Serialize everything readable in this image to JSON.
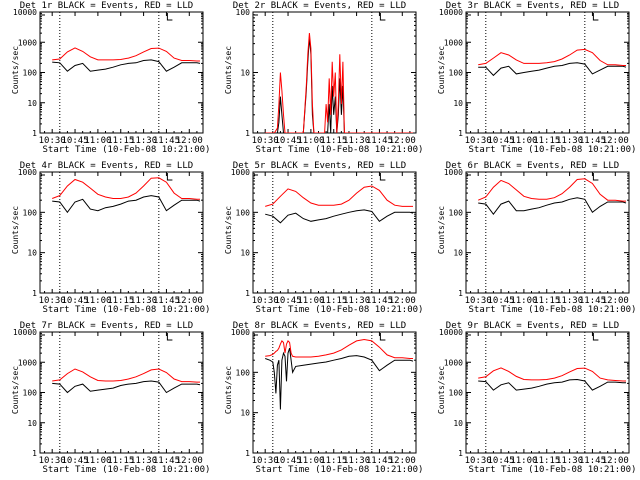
{
  "chart_data": [
    {
      "type": "line",
      "title": "Det 1r BLACK = Events, RED = LLD",
      "xlabel": "Start Time (10-Feb-08 10:21:00)",
      "ylabel": "Counts/sec",
      "x_ticks": [
        "10:30",
        "10:45",
        "11:00",
        "11:15",
        "11:30",
        "11:45",
        "12:00"
      ],
      "y_ticks": [
        "1",
        "10",
        "100",
        "1000",
        "10000"
      ],
      "yscale": "log",
      "ylim": [
        1,
        10000
      ],
      "x": [
        0,
        5,
        10,
        15,
        20,
        25,
        30,
        35,
        40,
        45,
        50,
        55,
        60,
        65,
        70,
        75,
        80,
        85,
        90,
        95,
        97
      ],
      "series": [
        {
          "color": "#ff0000",
          "values": [
            260,
            280,
            480,
            650,
            500,
            330,
            260,
            260,
            260,
            270,
            300,
            360,
            480,
            620,
            640,
            500,
            300,
            250,
            250,
            240,
            240
          ]
        },
        {
          "color": "#000000",
          "values": [
            220,
            210,
            110,
            170,
            200,
            110,
            120,
            130,
            150,
            180,
            200,
            210,
            250,
            260,
            230,
            110,
            150,
            210,
            210,
            210,
            200
          ]
        }
      ]
    },
    {
      "type": "line",
      "title": "Det 2r BLACK = Events, RED = LLD",
      "xlabel": "Start Time (10-Feb-08 10:21:00)",
      "ylabel": "Counts/sec",
      "x_ticks": [
        "10:30",
        "10:45",
        "11:00",
        "11:15",
        "11:30",
        "11:45",
        "12:00"
      ],
      "y_ticks": [
        "1",
        "10",
        "100"
      ],
      "yscale": "log",
      "ylim": [
        1,
        100
      ],
      "x": [
        0,
        4,
        6,
        8,
        9,
        10,
        11,
        12,
        13,
        14,
        20,
        25,
        27,
        28,
        29,
        30,
        31,
        32,
        35,
        39,
        40,
        41,
        42,
        43,
        44,
        45,
        46,
        47,
        48,
        49,
        50,
        51,
        52,
        60,
        97
      ],
      "series": [
        {
          "color": "#ff0000",
          "values": [
            1,
            1,
            1,
            1.2,
            3,
            10,
            5,
            2,
            1,
            1,
            1,
            1,
            6,
            20,
            45,
            25,
            3,
            1,
            1,
            1,
            3,
            1.5,
            8,
            2,
            15,
            4,
            10,
            1,
            3,
            20,
            3,
            15,
            1,
            1,
            1
          ]
        },
        {
          "color": "#000000",
          "values": [
            1,
            1,
            1,
            1,
            1.5,
            4,
            2,
            1,
            1,
            1,
            1,
            1,
            5,
            15,
            38,
            20,
            2,
            1,
            1,
            1,
            1,
            1,
            3,
            1,
            6,
            2,
            4,
            1,
            2,
            8,
            2,
            6,
            1,
            1,
            1
          ]
        }
      ]
    },
    {
      "type": "line",
      "title": "Det 3r BLACK = Events, RED = LLD",
      "xlabel": "Start Time (10-Feb-08 10:21:00)",
      "ylabel": "Counts/sec",
      "x_ticks": [
        "10:30",
        "10:45",
        "11:00",
        "11:15",
        "11:30",
        "11:45",
        "12:00"
      ],
      "y_ticks": [
        "1",
        "10",
        "100",
        "1000",
        "10000"
      ],
      "yscale": "log",
      "ylim": [
        1,
        10000
      ],
      "x": [
        0,
        5,
        10,
        15,
        20,
        25,
        30,
        35,
        40,
        45,
        50,
        55,
        60,
        65,
        70,
        75,
        80,
        85,
        90,
        95,
        97
      ],
      "series": [
        {
          "color": "#ff0000",
          "values": [
            180,
            200,
            300,
            450,
            380,
            260,
            200,
            200,
            200,
            210,
            230,
            280,
            380,
            550,
            580,
            450,
            250,
            180,
            180,
            170,
            170
          ]
        },
        {
          "color": "#000000",
          "values": [
            150,
            150,
            80,
            140,
            160,
            90,
            100,
            110,
            120,
            140,
            160,
            170,
            200,
            210,
            190,
            90,
            120,
            160,
            160,
            160,
            150
          ]
        }
      ]
    },
    {
      "type": "line",
      "title": "Det 4r BLACK = Events, RED = LLD",
      "xlabel": "Start Time (10-Feb-08 10:21:00)",
      "ylabel": "Counts/sec",
      "x_ticks": [
        "10:30",
        "10:45",
        "11:00",
        "11:15",
        "11:30",
        "11:45",
        "12:00"
      ],
      "y_ticks": [
        "1",
        "10",
        "100",
        "1000"
      ],
      "yscale": "log",
      "ylim": [
        1,
        1000
      ],
      "x": [
        0,
        5,
        10,
        15,
        20,
        25,
        30,
        35,
        40,
        45,
        50,
        55,
        60,
        65,
        70,
        75,
        80,
        85,
        90,
        95,
        97
      ],
      "series": [
        {
          "color": "#ff0000",
          "values": [
            220,
            260,
            450,
            650,
            560,
            400,
            280,
            240,
            220,
            220,
            240,
            300,
            450,
            700,
            720,
            560,
            300,
            220,
            220,
            210,
            210
          ]
        },
        {
          "color": "#000000",
          "values": [
            190,
            180,
            100,
            180,
            210,
            120,
            110,
            130,
            140,
            160,
            190,
            200,
            240,
            260,
            240,
            110,
            150,
            200,
            200,
            200,
            190
          ]
        }
      ]
    },
    {
      "type": "line",
      "title": "Det 5r BLACK = Events, RED = LLD",
      "xlabel": "Start Time (10-Feb-08 10:21:00)",
      "ylabel": "Counts/sec",
      "x_ticks": [
        "10:30",
        "10:45",
        "11:00",
        "11:15",
        "11:30",
        "11:45",
        "12:00"
      ],
      "y_ticks": [
        "1",
        "10",
        "100",
        "1000"
      ],
      "yscale": "log",
      "ylim": [
        1,
        1000
      ],
      "x": [
        0,
        5,
        10,
        15,
        20,
        25,
        30,
        35,
        40,
        45,
        50,
        55,
        60,
        65,
        70,
        75,
        80,
        85,
        90,
        95,
        97
      ],
      "series": [
        {
          "color": "#ff0000",
          "values": [
            140,
            160,
            250,
            380,
            330,
            230,
            170,
            150,
            150,
            150,
            160,
            200,
            300,
            420,
            450,
            350,
            200,
            150,
            140,
            140,
            140
          ]
        },
        {
          "color": "#000000",
          "values": [
            90,
            80,
            55,
            85,
            95,
            70,
            60,
            65,
            70,
            80,
            90,
            100,
            110,
            115,
            105,
            60,
            80,
            100,
            100,
            100,
            95
          ]
        }
      ]
    },
    {
      "type": "line",
      "title": "Det 6r BLACK = Events, RED = LLD",
      "xlabel": "Start Time (10-Feb-08 10:21:00)",
      "ylabel": "Counts/sec",
      "x_ticks": [
        "10:30",
        "10:45",
        "11:00",
        "11:15",
        "11:30",
        "11:45",
        "12:00"
      ],
      "y_ticks": [
        "1",
        "10",
        "100",
        "1000"
      ],
      "yscale": "log",
      "ylim": [
        1,
        1000
      ],
      "x": [
        0,
        5,
        10,
        15,
        20,
        25,
        30,
        35,
        40,
        45,
        50,
        55,
        60,
        65,
        70,
        75,
        80,
        85,
        90,
        95,
        97
      ],
      "series": [
        {
          "color": "#ff0000",
          "values": [
            200,
            240,
            420,
            620,
            520,
            360,
            250,
            220,
            210,
            210,
            230,
            290,
            420,
            650,
            680,
            520,
            280,
            200,
            200,
            190,
            190
          ]
        },
        {
          "color": "#000000",
          "values": [
            170,
            160,
            90,
            160,
            190,
            110,
            110,
            120,
            130,
            150,
            170,
            180,
            210,
            230,
            210,
            100,
            140,
            180,
            180,
            180,
            170
          ]
        }
      ]
    },
    {
      "type": "line",
      "title": "Det 7r BLACK = Events, RED = LLD",
      "xlabel": "Start Time (10-Feb-08 10:21:00)",
      "ylabel": "Counts/sec",
      "x_ticks": [
        "10:30",
        "10:45",
        "11:00",
        "11:15",
        "11:30",
        "11:45",
        "12:00"
      ],
      "y_ticks": [
        "1",
        "10",
        "100",
        "1000",
        "10000"
      ],
      "yscale": "log",
      "ylim": [
        1,
        10000
      ],
      "x": [
        0,
        5,
        10,
        15,
        20,
        25,
        30,
        35,
        40,
        45,
        50,
        55,
        60,
        65,
        70,
        75,
        80,
        85,
        90,
        95,
        97
      ],
      "series": [
        {
          "color": "#ff0000",
          "values": [
            240,
            260,
            420,
            600,
            480,
            330,
            250,
            240,
            240,
            250,
            280,
            330,
            420,
            560,
            600,
            460,
            280,
            230,
            230,
            220,
            220
          ]
        },
        {
          "color": "#000000",
          "values": [
            200,
            190,
            100,
            160,
            190,
            110,
            120,
            130,
            140,
            170,
            190,
            200,
            230,
            240,
            220,
            100,
            140,
            190,
            190,
            190,
            180
          ]
        }
      ]
    },
    {
      "type": "line",
      "title": "Det 8r BLACK = Events, RED = LLD",
      "xlabel": "Start Time (10-Feb-08 10:21:00)",
      "ylabel": "Counts/sec",
      "x_ticks": [
        "10:30",
        "10:45",
        "11:00",
        "11:15",
        "11:30",
        "11:45",
        "12:00"
      ],
      "y_ticks": [
        "1",
        "10",
        "100",
        "1000"
      ],
      "yscale": "log",
      "ylim": [
        1,
        1000
      ],
      "x": [
        0,
        3,
        5,
        6,
        7,
        8,
        9,
        10,
        11,
        12,
        13,
        14,
        15,
        16,
        17,
        18,
        20,
        25,
        30,
        35,
        40,
        45,
        50,
        55,
        60,
        65,
        70,
        75,
        80,
        85,
        90,
        95,
        97
      ],
      "series": [
        {
          "color": "#ff0000",
          "values": [
            250,
            260,
            280,
            300,
            330,
            350,
            400,
            500,
            600,
            550,
            300,
            500,
            600,
            550,
            300,
            250,
            240,
            240,
            240,
            250,
            270,
            300,
            360,
            470,
            600,
            650,
            600,
            420,
            270,
            230,
            230,
            220,
            220
          ]
        },
        {
          "color": "#000000",
          "values": [
            220,
            200,
            180,
            100,
            30,
            150,
            200,
            12,
            200,
            300,
            250,
            60,
            300,
            400,
            200,
            100,
            140,
            150,
            160,
            170,
            180,
            200,
            220,
            250,
            260,
            240,
            200,
            110,
            150,
            200,
            200,
            200,
            190
          ]
        }
      ]
    },
    {
      "type": "line",
      "title": "Det 9r BLACK = Events, RED = LLD",
      "xlabel": "Start Time (10-Feb-08 10:21:00)",
      "ylabel": "Counts/sec",
      "x_ticks": [
        "10:30",
        "10:45",
        "11:00",
        "11:15",
        "11:30",
        "11:45",
        "12:00"
      ],
      "y_ticks": [
        "1",
        "10",
        "100",
        "1000",
        "10000"
      ],
      "yscale": "log",
      "ylim": [
        1,
        10000
      ],
      "x": [
        0,
        5,
        10,
        15,
        20,
        25,
        30,
        35,
        40,
        45,
        50,
        55,
        60,
        65,
        70,
        75,
        80,
        85,
        90,
        95,
        97
      ],
      "series": [
        {
          "color": "#ff0000",
          "values": [
            300,
            330,
            520,
            650,
            500,
            340,
            270,
            260,
            260,
            270,
            300,
            360,
            480,
            620,
            640,
            500,
            300,
            260,
            250,
            240,
            240
          ]
        },
        {
          "color": "#000000",
          "values": [
            240,
            230,
            120,
            180,
            210,
            120,
            130,
            140,
            160,
            190,
            210,
            220,
            260,
            270,
            240,
            120,
            160,
            220,
            220,
            210,
            210
          ]
        }
      ]
    }
  ]
}
